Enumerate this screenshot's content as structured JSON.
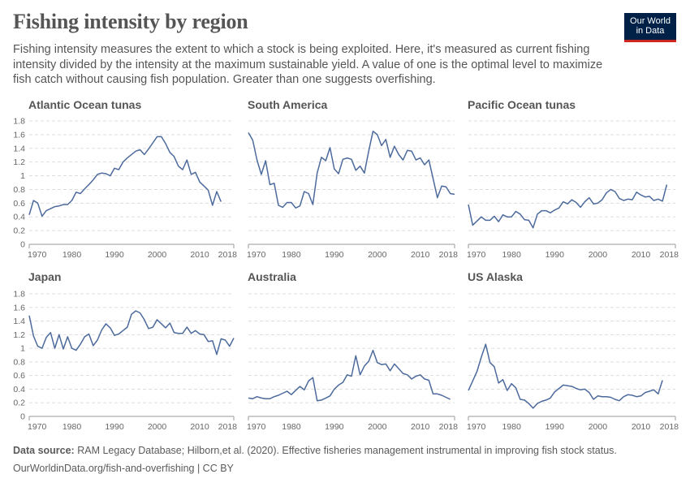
{
  "header": {
    "title": "Fishing intensity by region",
    "subtitle": "Fishing intensity measures the extent to which a stock is being exploited. Here, it's measured as current fishing intensity divided by the intensity at the maximum sustainable yield. A value of one is the optimal level to maximize fish catch without causing fish population. Greater than one suggests overfishing.",
    "logo": "Our World in Data"
  },
  "footer": {
    "source_label": "Data source:",
    "source_text": "RAM Legacy Database; Hilborn,et al. (2020). Effective fisheries management instrumental in improving fish stock status.",
    "url_license": "OurWorldinData.org/fish-and-overfishing | CC BY"
  },
  "colors": {
    "line": "#4c6a9c",
    "grid": "#dddddd",
    "logo_bg": "#002147",
    "logo_bar": "#ce261e"
  },
  "chart_data": [
    {
      "type": "line",
      "title": "Atlantic Ocean tunas",
      "xlim": [
        1970,
        2018
      ],
      "ylim": [
        0,
        1.8
      ],
      "grid": true,
      "x_ticks": [
        "1970",
        "1980",
        "1990",
        "2000",
        "2010",
        "2018"
      ],
      "y_ticks": [
        "0",
        "0.2",
        "0.4",
        "0.6",
        "0.8",
        "1",
        "1.2",
        "1.4",
        "1.6",
        "1.8"
      ],
      "start_year": 1970,
      "values": [
        0.43,
        0.64,
        0.6,
        0.41,
        0.49,
        0.52,
        0.55,
        0.56,
        0.58,
        0.58,
        0.64,
        0.76,
        0.74,
        0.81,
        0.87,
        0.94,
        1.02,
        1.04,
        1.03,
        1.0,
        1.11,
        1.09,
        1.2,
        1.26,
        1.31,
        1.36,
        1.38,
        1.31,
        1.39,
        1.48,
        1.57,
        1.57,
        1.47,
        1.34,
        1.28,
        1.14,
        1.09,
        1.23,
        1.02,
        1.05,
        0.91,
        0.85,
        0.79,
        0.57,
        0.77,
        0.62
      ]
    },
    {
      "type": "line",
      "title": "South America",
      "xlim": [
        1970,
        2018
      ],
      "ylim": [
        0,
        1.8
      ],
      "grid": true,
      "x_ticks": [
        "1970",
        "1980",
        "1990",
        "2000",
        "2010",
        "2018"
      ],
      "start_year": 1970,
      "values": [
        1.63,
        1.52,
        1.23,
        1.02,
        1.22,
        0.87,
        0.89,
        0.57,
        0.54,
        0.61,
        0.61,
        0.53,
        0.56,
        0.77,
        0.74,
        0.58,
        1.04,
        1.27,
        1.22,
        1.41,
        1.1,
        1.03,
        1.24,
        1.26,
        1.24,
        1.08,
        1.14,
        1.04,
        1.36,
        1.65,
        1.6,
        1.44,
        1.53,
        1.27,
        1.43,
        1.31,
        1.23,
        1.37,
        1.36,
        1.23,
        1.26,
        1.16,
        1.23,
        0.96,
        0.68,
        0.85,
        0.84,
        0.74,
        0.73
      ]
    },
    {
      "type": "line",
      "title": "Pacific Ocean tunas",
      "xlim": [
        1970,
        2018
      ],
      "ylim": [
        0,
        1.8
      ],
      "grid": true,
      "x_ticks": [
        "1970",
        "1980",
        "1990",
        "2000",
        "2010",
        "2018"
      ],
      "start_year": 1970,
      "values": [
        0.58,
        0.28,
        0.34,
        0.4,
        0.35,
        0.35,
        0.41,
        0.33,
        0.43,
        0.4,
        0.4,
        0.48,
        0.44,
        0.36,
        0.35,
        0.24,
        0.44,
        0.49,
        0.49,
        0.46,
        0.5,
        0.53,
        0.62,
        0.59,
        0.65,
        0.61,
        0.54,
        0.62,
        0.68,
        0.59,
        0.6,
        0.65,
        0.75,
        0.8,
        0.77,
        0.67,
        0.64,
        0.66,
        0.65,
        0.76,
        0.72,
        0.69,
        0.7,
        0.64,
        0.66,
        0.63,
        0.87
      ]
    },
    {
      "type": "line",
      "title": "Japan",
      "xlim": [
        1970,
        2018
      ],
      "ylim": [
        0,
        1.8
      ],
      "grid": true,
      "x_ticks": [
        "1970",
        "1980",
        "1990",
        "2000",
        "2010",
        "2018"
      ],
      "y_ticks": [
        "0",
        "0.2",
        "0.4",
        "0.6",
        "0.8",
        "1",
        "1.2",
        "1.4",
        "1.6",
        "1.8"
      ],
      "start_year": 1970,
      "values": [
        1.48,
        1.18,
        1.03,
        1.0,
        1.16,
        1.23,
        1.0,
        1.2,
        0.99,
        1.17,
        1.0,
        0.97,
        1.06,
        1.17,
        1.21,
        1.04,
        1.12,
        1.27,
        1.36,
        1.3,
        1.19,
        1.21,
        1.26,
        1.31,
        1.5,
        1.55,
        1.52,
        1.42,
        1.29,
        1.31,
        1.42,
        1.36,
        1.3,
        1.37,
        1.23,
        1.22,
        1.22,
        1.31,
        1.22,
        1.26,
        1.21,
        1.2,
        1.1,
        1.11,
        0.91,
        1.14,
        1.12,
        1.03,
        1.15
      ]
    },
    {
      "type": "line",
      "title": "Australia",
      "xlim": [
        1970,
        2018
      ],
      "ylim": [
        0,
        1.8
      ],
      "grid": true,
      "x_ticks": [
        "1970",
        "1980",
        "1990",
        "2000",
        "2010",
        "2018"
      ],
      "start_year": 1970,
      "values": [
        0.27,
        0.26,
        0.29,
        0.27,
        0.26,
        0.26,
        0.29,
        0.31,
        0.34,
        0.37,
        0.32,
        0.38,
        0.44,
        0.39,
        0.52,
        0.57,
        0.23,
        0.24,
        0.27,
        0.3,
        0.4,
        0.46,
        0.5,
        0.61,
        0.59,
        0.89,
        0.61,
        0.74,
        0.81,
        0.97,
        0.79,
        0.76,
        0.77,
        0.67,
        0.77,
        0.7,
        0.63,
        0.61,
        0.55,
        0.59,
        0.61,
        0.55,
        0.53,
        0.33,
        0.33,
        0.31,
        0.28,
        0.25
      ]
    },
    {
      "type": "line",
      "title": "US Alaska",
      "xlim": [
        1970,
        2018
      ],
      "ylim": [
        0,
        1.8
      ],
      "grid": true,
      "x_ticks": [
        "1970",
        "1980",
        "1990",
        "2000",
        "2010",
        "2018"
      ],
      "start_year": 1970,
      "values": [
        0.38,
        0.52,
        0.66,
        0.87,
        1.06,
        0.79,
        0.73,
        0.49,
        0.54,
        0.38,
        0.48,
        0.42,
        0.25,
        0.24,
        0.19,
        0.12,
        0.19,
        0.22,
        0.24,
        0.27,
        0.36,
        0.41,
        0.46,
        0.45,
        0.44,
        0.41,
        0.39,
        0.4,
        0.35,
        0.25,
        0.3,
        0.29,
        0.29,
        0.28,
        0.25,
        0.23,
        0.29,
        0.32,
        0.31,
        0.29,
        0.3,
        0.35,
        0.37,
        0.39,
        0.33,
        0.53
      ]
    }
  ]
}
